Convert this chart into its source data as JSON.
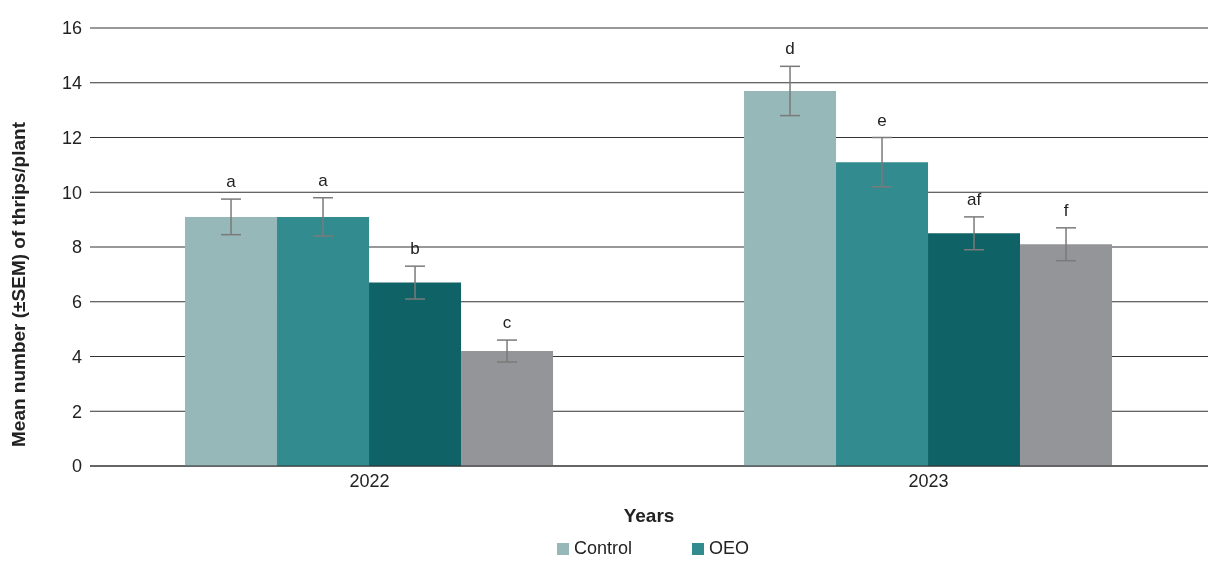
{
  "chart_data": {
    "type": "bar",
    "xlabel": "Years",
    "ylabel": "Mean number (±SEM) of thrips/plant",
    "categories": [
      "2022",
      "2023"
    ],
    "series": [
      {
        "name": "Control",
        "color": "#97b8b9",
        "values": [
          9.1,
          13.7
        ],
        "errors": [
          0.65,
          0.9
        ],
        "value_labels": [
          "a",
          "d"
        ]
      },
      {
        "name": "OEO",
        "color": "#328b8f",
        "values": [
          9.1,
          11.1
        ],
        "errors": [
          0.7,
          0.9
        ],
        "value_labels": [
          "a",
          "e"
        ]
      },
      {
        "color": "#0f6265",
        "values": [
          6.7,
          8.5
        ],
        "errors": [
          0.6,
          0.6
        ],
        "value_labels": [
          "b",
          "af"
        ]
      },
      {
        "color": "#949598",
        "values": [
          4.2,
          8.1
        ],
        "errors": [
          0.4,
          0.6
        ],
        "value_labels": [
          "c",
          "f"
        ]
      }
    ],
    "ylim": [
      0,
      16
    ],
    "yticks": [
      0,
      2,
      4,
      6,
      8,
      10,
      12,
      14,
      16
    ],
    "grid": "y",
    "legend": "bottom"
  }
}
